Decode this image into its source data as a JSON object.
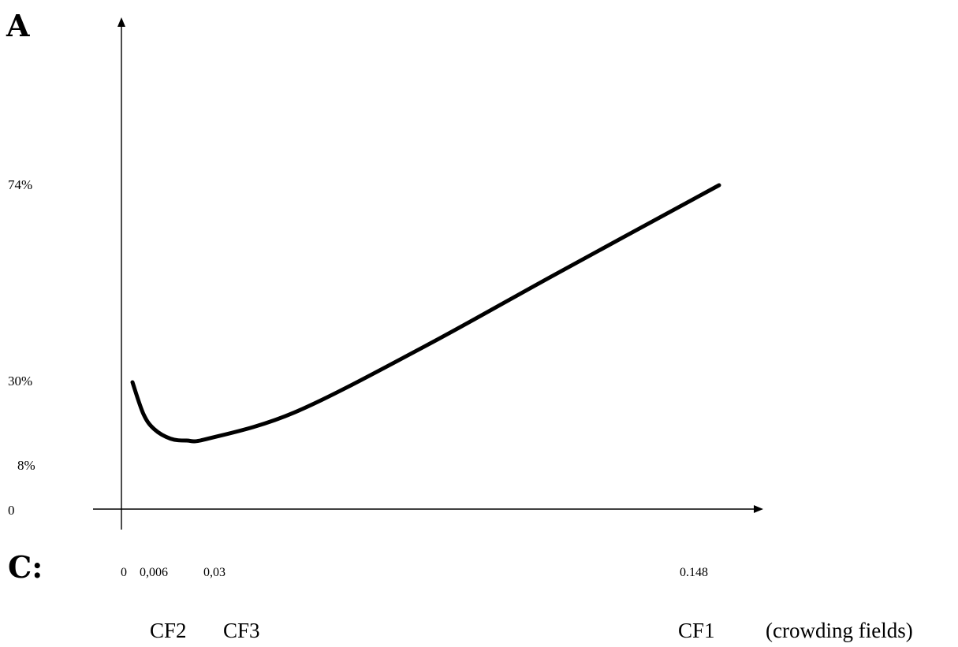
{
  "chart_data": {
    "type": "line",
    "y_axis_letter": "A",
    "x_axis_letter": "C:",
    "y_ticks": [
      "0",
      "8%",
      "30%",
      "74%"
    ],
    "x_ticks": [
      "0",
      "0,006",
      "0,03",
      "0.148"
    ],
    "field_labels": [
      "CF2",
      "CF3",
      "CF1",
      "(crowding fields)"
    ],
    "series": [
      {
        "x": [
          0.003,
          0.006,
          0.01,
          0.016,
          0.022,
          0.03,
          0.05,
          0.08,
          0.11,
          0.148
        ],
        "y": [
          0.3,
          0.215,
          0.175,
          0.15,
          0.145,
          0.15,
          0.22,
          0.38,
          0.54,
          0.74
        ]
      }
    ],
    "grid": false,
    "legend": "none"
  }
}
